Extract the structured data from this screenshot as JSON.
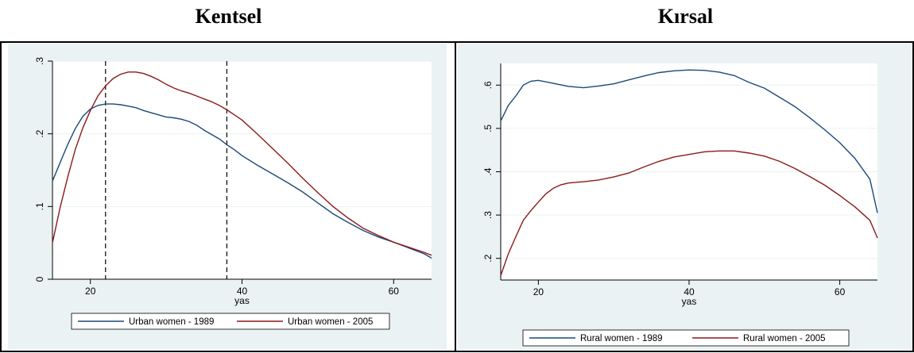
{
  "headings": {
    "left": "Kentsel",
    "right": "Kırsal"
  },
  "chart_data": [
    {
      "type": "line",
      "title": "Kentsel",
      "xlabel": "yas",
      "ylabel": "",
      "xlim": [
        15,
        65
      ],
      "ylim": [
        0,
        0.3
      ],
      "x_ticks": [
        20,
        40,
        60
      ],
      "y_ticks": [
        0,
        0.1,
        0.2,
        0.3
      ],
      "x_tick_labels": [
        "20",
        "40",
        "60"
      ],
      "y_tick_labels": [
        "0",
        ".1",
        ".2",
        ".3"
      ],
      "vlines": [
        22,
        38
      ],
      "grid": true,
      "legend_position": "bottom",
      "series": [
        {
          "name": "Urban women - 1989",
          "color": "#1a4a7a",
          "points": [
            [
              15,
              0.135
            ],
            [
              16,
              0.16
            ],
            [
              17,
              0.185
            ],
            [
              18,
              0.207
            ],
            [
              19,
              0.224
            ],
            [
              20,
              0.234
            ],
            [
              21,
              0.239
            ],
            [
              22,
              0.241
            ],
            [
              23,
              0.241
            ],
            [
              24,
              0.24
            ],
            [
              25,
              0.238
            ],
            [
              26,
              0.236
            ],
            [
              27,
              0.232
            ],
            [
              28,
              0.229
            ],
            [
              29,
              0.226
            ],
            [
              30,
              0.223
            ],
            [
              31,
              0.222
            ],
            [
              32,
              0.22
            ],
            [
              33,
              0.217
            ],
            [
              34,
              0.212
            ],
            [
              35,
              0.205
            ],
            [
              36,
              0.199
            ],
            [
              37,
              0.193
            ],
            [
              38,
              0.185
            ],
            [
              39,
              0.178
            ],
            [
              40,
              0.17
            ],
            [
              42,
              0.157
            ],
            [
              44,
              0.145
            ],
            [
              46,
              0.133
            ],
            [
              48,
              0.12
            ],
            [
              50,
              0.105
            ],
            [
              52,
              0.09
            ],
            [
              54,
              0.078
            ],
            [
              56,
              0.067
            ],
            [
              58,
              0.058
            ],
            [
              60,
              0.051
            ],
            [
              62,
              0.043
            ],
            [
              64,
              0.035
            ],
            [
              65,
              0.029
            ]
          ]
        },
        {
          "name": "Urban women - 2005",
          "color": "#8b1a1a",
          "points": [
            [
              15,
              0.05
            ],
            [
              16,
              0.098
            ],
            [
              17,
              0.14
            ],
            [
              18,
              0.178
            ],
            [
              19,
              0.208
            ],
            [
              20,
              0.232
            ],
            [
              21,
              0.252
            ],
            [
              22,
              0.266
            ],
            [
              23,
              0.276
            ],
            [
              24,
              0.282
            ],
            [
              25,
              0.285
            ],
            [
              26,
              0.285
            ],
            [
              27,
              0.283
            ],
            [
              28,
              0.279
            ],
            [
              29,
              0.274
            ],
            [
              30,
              0.268
            ],
            [
              31,
              0.263
            ],
            [
              32,
              0.259
            ],
            [
              33,
              0.256
            ],
            [
              34,
              0.252
            ],
            [
              35,
              0.248
            ],
            [
              36,
              0.244
            ],
            [
              37,
              0.239
            ],
            [
              38,
              0.233
            ],
            [
              39,
              0.226
            ],
            [
              40,
              0.219
            ],
            [
              42,
              0.2
            ],
            [
              44,
              0.18
            ],
            [
              46,
              0.16
            ],
            [
              48,
              0.139
            ],
            [
              50,
              0.119
            ],
            [
              52,
              0.1
            ],
            [
              54,
              0.084
            ],
            [
              56,
              0.07
            ],
            [
              58,
              0.06
            ],
            [
              60,
              0.051
            ],
            [
              62,
              0.044
            ],
            [
              64,
              0.037
            ],
            [
              65,
              0.033
            ]
          ]
        }
      ]
    },
    {
      "type": "line",
      "title": "Kırsal",
      "xlabel": "yas",
      "ylabel": "",
      "xlim": [
        15,
        65
      ],
      "ylim": [
        0.15,
        0.65
      ],
      "x_ticks": [
        20,
        40,
        60
      ],
      "y_ticks": [
        0.2,
        0.3,
        0.4,
        0.5,
        0.6
      ],
      "x_tick_labels": [
        "20",
        "40",
        "60"
      ],
      "y_tick_labels": [
        ".2",
        ".3",
        ".4",
        ".5",
        ".6"
      ],
      "grid": true,
      "legend_position": "bottom",
      "series": [
        {
          "name": "Rural women - 1989",
          "color": "#1a4a7a",
          "points": [
            [
              15,
              0.517
            ],
            [
              16,
              0.553
            ],
            [
              17,
              0.575
            ],
            [
              18,
              0.6
            ],
            [
              19,
              0.609
            ],
            [
              20,
              0.611
            ],
            [
              22,
              0.604
            ],
            [
              24,
              0.597
            ],
            [
              26,
              0.594
            ],
            [
              28,
              0.598
            ],
            [
              30,
              0.603
            ],
            [
              32,
              0.612
            ],
            [
              34,
              0.621
            ],
            [
              36,
              0.629
            ],
            [
              38,
              0.633
            ],
            [
              40,
              0.635
            ],
            [
              42,
              0.634
            ],
            [
              44,
              0.63
            ],
            [
              46,
              0.622
            ],
            [
              48,
              0.606
            ],
            [
              50,
              0.593
            ],
            [
              52,
              0.572
            ],
            [
              54,
              0.551
            ],
            [
              56,
              0.525
            ],
            [
              58,
              0.497
            ],
            [
              60,
              0.467
            ],
            [
              62,
              0.431
            ],
            [
              64,
              0.383
            ],
            [
              65,
              0.305
            ]
          ]
        },
        {
          "name": "Rural women - 2005",
          "color": "#8b1a1a",
          "points": [
            [
              15,
              0.16
            ],
            [
              16,
              0.21
            ],
            [
              17,
              0.25
            ],
            [
              18,
              0.288
            ],
            [
              19,
              0.31
            ],
            [
              20,
              0.33
            ],
            [
              21,
              0.349
            ],
            [
              22,
              0.362
            ],
            [
              23,
              0.37
            ],
            [
              24,
              0.374
            ],
            [
              26,
              0.377
            ],
            [
              28,
              0.381
            ],
            [
              30,
              0.388
            ],
            [
              32,
              0.397
            ],
            [
              34,
              0.411
            ],
            [
              36,
              0.424
            ],
            [
              38,
              0.434
            ],
            [
              40,
              0.44
            ],
            [
              42,
              0.446
            ],
            [
              44,
              0.448
            ],
            [
              46,
              0.448
            ],
            [
              48,
              0.443
            ],
            [
              50,
              0.436
            ],
            [
              52,
              0.424
            ],
            [
              54,
              0.408
            ],
            [
              56,
              0.389
            ],
            [
              58,
              0.369
            ],
            [
              60,
              0.345
            ],
            [
              62,
              0.319
            ],
            [
              64,
              0.288
            ],
            [
              65,
              0.247
            ]
          ]
        }
      ]
    }
  ]
}
